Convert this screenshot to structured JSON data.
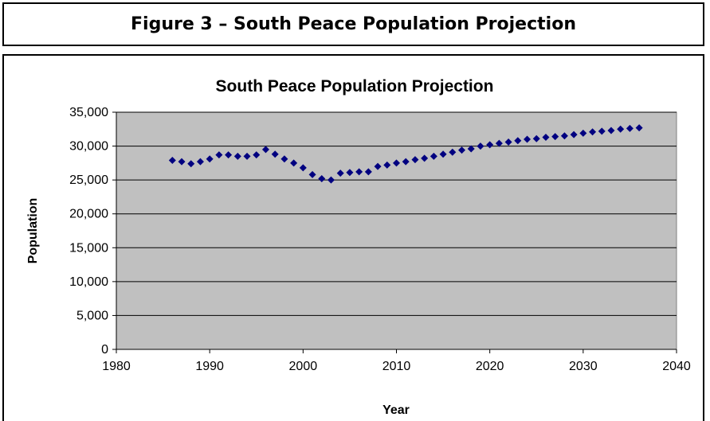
{
  "figure_caption": "Figure 3 – South Peace Population Projection",
  "chart_data": {
    "type": "scatter",
    "title": "South Peace Population Projection",
    "xlabel": "Year",
    "ylabel": "Population",
    "xlim": [
      1980,
      2040
    ],
    "ylim": [
      0,
      35000
    ],
    "x_ticks": [
      "1980",
      "1990",
      "2000",
      "2010",
      "2020",
      "2030",
      "2040"
    ],
    "y_ticks": [
      "0",
      "5,000",
      "10,000",
      "15,000",
      "20,000",
      "25,000",
      "30,000",
      "35,000"
    ],
    "grid": true,
    "legend": "none",
    "plot_background": "#c0c0c0",
    "marker_color": "#000080",
    "marker": "diamond",
    "series": [
      {
        "x": [
          1986,
          1987,
          1988,
          1989,
          1990,
          1991,
          1992,
          1993,
          1994,
          1995,
          1996,
          1997,
          1998,
          1999,
          2000,
          2001,
          2002,
          2003,
          2004,
          2005,
          2006,
          2007,
          2008,
          2009,
          2010,
          2011,
          2012,
          2013,
          2014,
          2015,
          2016,
          2017,
          2018,
          2019,
          2020,
          2021,
          2022,
          2023,
          2024,
          2025,
          2026,
          2027,
          2028,
          2029,
          2030,
          2031,
          2032,
          2033,
          2034,
          2035,
          2036
        ],
        "values": [
          27900,
          27700,
          27400,
          27700,
          28100,
          28700,
          28700,
          28500,
          28500,
          28700,
          29500,
          28800,
          28100,
          27500,
          26800,
          25800,
          25200,
          25000,
          26000,
          26100,
          26200,
          26200,
          27000,
          27200,
          27500,
          27700,
          28000,
          28200,
          28500,
          28800,
          29100,
          29400,
          29600,
          30000,
          30200,
          30400,
          30600,
          30800,
          31000,
          31100,
          31300,
          31400,
          31500,
          31700,
          31900,
          32100,
          32200,
          32300,
          32500,
          32600,
          32700
        ]
      }
    ]
  }
}
